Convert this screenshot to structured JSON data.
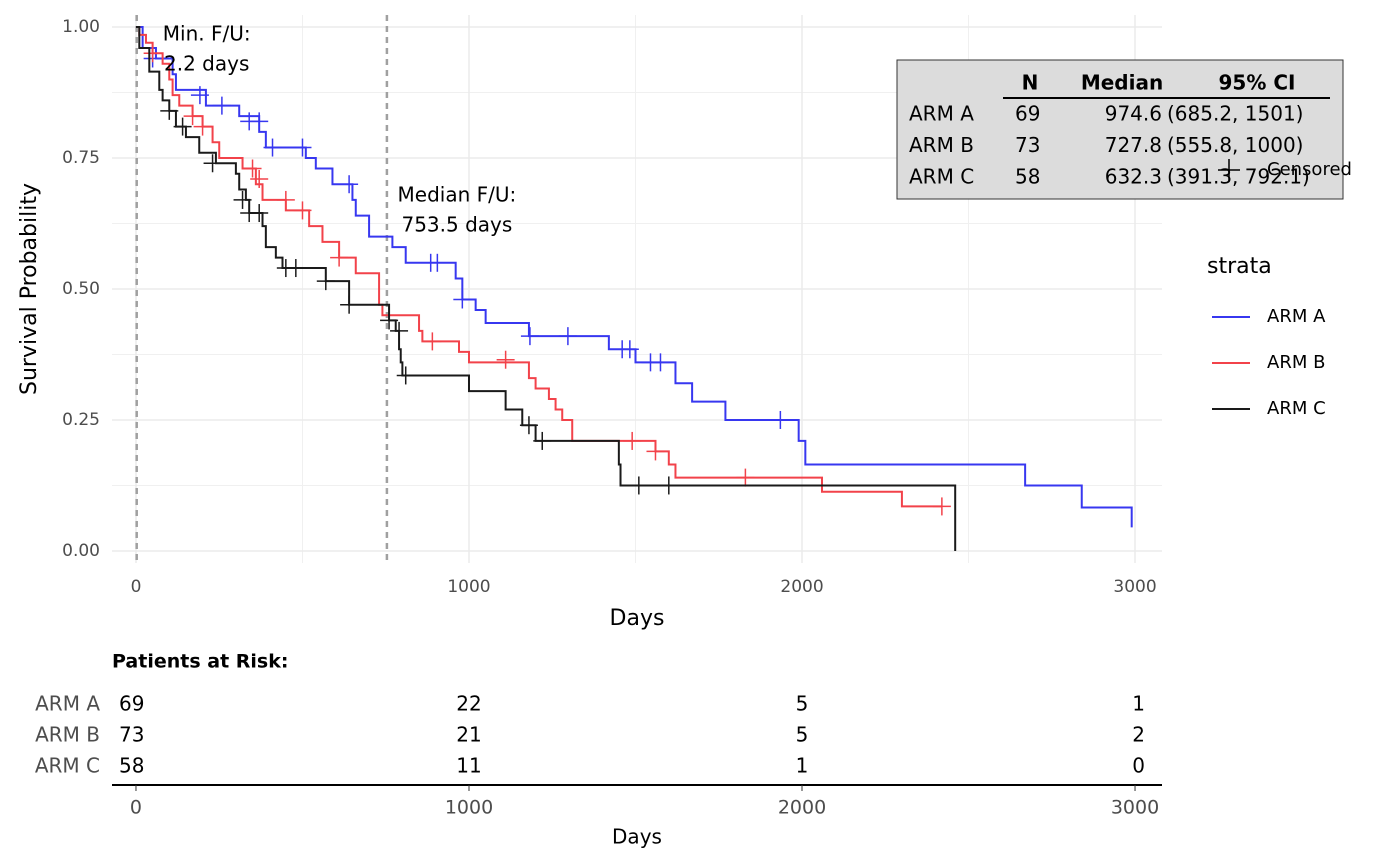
{
  "chart_data": [
    {
      "type": "km_step",
      "x_label": "Days",
      "y_label": "Survival Probability",
      "xlim": [
        -72,
        3081
      ],
      "ylim": [
        -0.023,
        1.023
      ],
      "xticks": [
        0,
        1000,
        2000,
        3000
      ],
      "yticks": [
        {
          "value": 0,
          "label": "0.00"
        },
        0.25,
        {
          "value": 0.5,
          "label": "0.50"
        },
        0.75,
        {
          "value": 1,
          "label": "1.00"
        }
      ],
      "grid": true,
      "legend": "right",
      "legend_title": "strata",
      "censor_label": "Censored",
      "annotations": [
        {
          "x": 2.2,
          "lines": [
            "Min. F/U:",
            "2.2 days"
          ]
        },
        {
          "x": 753.5,
          "lines": [
            "Median F/U:",
            "753.5 days"
          ]
        }
      ],
      "summary": {
        "columns": [
          "N",
          "Median",
          "95% CI"
        ],
        "rows": [
          [
            "ARM A",
            69,
            974.6,
            "(685.2, 1501)"
          ],
          [
            "ARM B",
            73,
            727.8,
            "(555.8, 1000)"
          ],
          [
            "ARM C",
            58,
            632.3,
            "(391.3, 792.1)"
          ]
        ]
      },
      "series": [
        {
          "name": "ARM A",
          "color": "#3737f0",
          "x": [
            0,
            20,
            60,
            110,
            120,
            210,
            310,
            370,
            390,
            510,
            540,
            590,
            650,
            660,
            700,
            770,
            810,
            960,
            980,
            1020,
            1050,
            1180,
            1420,
            1500,
            1620,
            1670,
            1770,
            1990,
            2010,
            2670,
            2840,
            2990
          ],
          "values": [
            1,
            0.96,
            0.94,
            0.91,
            0.88,
            0.85,
            0.83,
            0.8,
            0.77,
            0.75,
            0.73,
            0.7,
            0.67,
            0.64,
            0.6,
            0.58,
            0.55,
            0.52,
            0.48,
            0.46,
            0.435,
            0.41,
            0.385,
            0.36,
            0.32,
            0.285,
            0.25,
            0.21,
            0.165,
            0.125,
            0.083,
            0.045
          ],
          "censor_x": [
            50,
            192,
            258,
            340,
            370,
            410,
            500,
            640,
            885,
            905,
            980,
            1183,
            1297,
            1460,
            1483,
            1545,
            1575,
            1935
          ],
          "censor_values": [
            0.94,
            0.87,
            0.85,
            0.82,
            0.82,
            0.77,
            0.77,
            0.7,
            0.55,
            0.55,
            0.48,
            0.41,
            0.41,
            0.385,
            0.385,
            0.36,
            0.36,
            0.25
          ]
        },
        {
          "name": "ARM B",
          "color": "#f2424a",
          "x": [
            0,
            10,
            30,
            50,
            80,
            100,
            110,
            130,
            170,
            200,
            230,
            250,
            320,
            360,
            380,
            450,
            520,
            560,
            610,
            660,
            730,
            740,
            850,
            860,
            970,
            1000,
            1180,
            1200,
            1240,
            1260,
            1280,
            1310,
            1560,
            1600,
            1620,
            2060,
            2300,
            2420
          ],
          "values": [
            1,
            0.985,
            0.97,
            0.95,
            0.93,
            0.9,
            0.87,
            0.85,
            0.83,
            0.81,
            0.78,
            0.75,
            0.73,
            0.7,
            0.67,
            0.65,
            0.62,
            0.59,
            0.56,
            0.53,
            0.47,
            0.45,
            0.42,
            0.4,
            0.38,
            0.36,
            0.33,
            0.31,
            0.29,
            0.27,
            0.25,
            0.21,
            0.19,
            0.165,
            0.14,
            0.113,
            0.085,
            0.085
          ],
          "censor_x": [
            50,
            170,
            200,
            350,
            370,
            450,
            500,
            610,
            890,
            1110,
            1490,
            1560,
            1830,
            2420
          ],
          "censor_values": [
            0.95,
            0.83,
            0.81,
            0.73,
            0.71,
            0.67,
            0.65,
            0.56,
            0.4,
            0.365,
            0.21,
            0.19,
            0.14,
            0.085
          ]
        },
        {
          "name": "ARM C",
          "color": "#1a1a1a",
          "x": [
            0,
            10,
            40,
            70,
            80,
            100,
            120,
            150,
            190,
            240,
            300,
            310,
            330,
            340,
            380,
            390,
            420,
            440,
            570,
            640,
            760,
            780,
            790,
            795,
            800,
            1000,
            1110,
            1160,
            1200,
            1450,
            1455,
            2460
          ],
          "values": [
            1,
            0.96,
            0.915,
            0.88,
            0.86,
            0.84,
            0.81,
            0.79,
            0.76,
            0.74,
            0.72,
            0.69,
            0.67,
            0.645,
            0.62,
            0.58,
            0.56,
            0.54,
            0.515,
            0.47,
            0.44,
            0.42,
            0.385,
            0.36,
            0.335,
            0.305,
            0.27,
            0.24,
            0.21,
            0.165,
            0.125,
            0
          ],
          "censor_x": [
            100,
            140,
            230,
            320,
            340,
            370,
            450,
            480,
            570,
            640,
            760,
            790,
            810,
            1180,
            1220,
            1510,
            1600
          ],
          "censor_values": [
            0.84,
            0.81,
            0.74,
            0.67,
            0.645,
            0.645,
            0.54,
            0.54,
            0.515,
            0.47,
            0.44,
            0.42,
            0.335,
            0.24,
            0.21,
            0.125,
            0.125
          ]
        }
      ]
    },
    {
      "type": "risk_table",
      "title": "Patients at Risk:",
      "x_label": "Days",
      "xlim": [
        -72,
        3081
      ],
      "xticks": [
        0,
        1000,
        2000,
        3000
      ],
      "series": [
        {
          "name": "ARM A",
          "values": [
            69,
            22,
            5,
            1
          ]
        },
        {
          "name": "ARM B",
          "values": [
            73,
            21,
            5,
            2
          ]
        },
        {
          "name": "ARM C",
          "values": [
            58,
            11,
            1,
            0
          ]
        }
      ]
    }
  ]
}
